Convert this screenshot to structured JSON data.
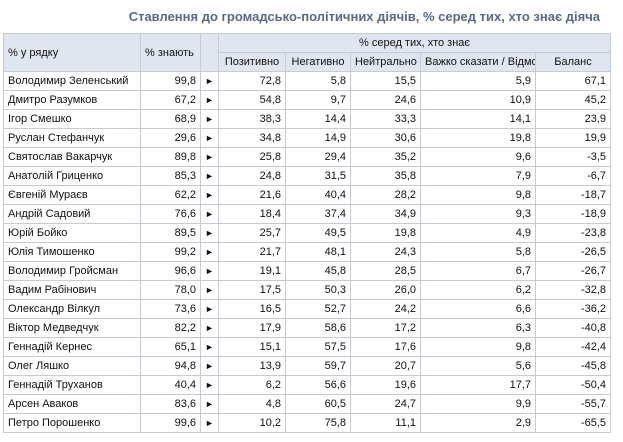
{
  "title": "Ставлення до громадсько-політичних діячів, % серед тих, хто знає діяча",
  "table": {
    "header": {
      "name": "% у рядку",
      "known": "% знають",
      "group": "% серед тих, хто знає",
      "columns": [
        "Позитивно",
        "Негативно",
        "Нейтрально",
        "Важко сказати / Відмова",
        "Баланс"
      ]
    },
    "rows": [
      [
        "Володимир Зеленський",
        "99,8",
        "72,8",
        "5,8",
        "15,5",
        "5,9",
        "67,1"
      ],
      [
        "Дмитро Разумков",
        "67,2",
        "54,8",
        "9,7",
        "24,6",
        "10,9",
        "45,2"
      ],
      [
        "Ігор Смешко",
        "68,9",
        "38,3",
        "14,4",
        "33,3",
        "14,1",
        "23,9"
      ],
      [
        "Руслан Стефанчук",
        "29,6",
        "34,8",
        "14,9",
        "30,6",
        "19,8",
        "19,9"
      ],
      [
        "Святослав Вакарчук",
        "89,8",
        "25,8",
        "29,4",
        "35,2",
        "9,6",
        "-3,5"
      ],
      [
        "Анатолій Гриценко",
        "85,3",
        "24,8",
        "31,5",
        "35,8",
        "7,9",
        "-6,7"
      ],
      [
        "Євгеній Мураєв",
        "62,2",
        "21,6",
        "40,4",
        "28,2",
        "9,8",
        "-18,7"
      ],
      [
        "Андрій Садовий",
        "76,6",
        "18,4",
        "37,4",
        "34,9",
        "9,3",
        "-18,9"
      ],
      [
        "Юрій Бойко",
        "89,5",
        "25,7",
        "49,5",
        "19,8",
        "4,9",
        "-23,8"
      ],
      [
        "Юлія Тимошенко",
        "99,2",
        "21,7",
        "48,1",
        "24,3",
        "5,8",
        "-26,5"
      ],
      [
        "Володимир Гройсман",
        "96,6",
        "19,1",
        "45,8",
        "28,5",
        "6,7",
        "-26,7"
      ],
      [
        "Вадим Рабінович",
        "78,0",
        "17,5",
        "50,3",
        "26,0",
        "6,2",
        "-32,8"
      ],
      [
        "Олександр Вілкул",
        "73,6",
        "16,5",
        "52,7",
        "24,2",
        "6,6",
        "-36,2"
      ],
      [
        "Віктор Медведчук",
        "82,2",
        "17,9",
        "58,6",
        "17,2",
        "6,3",
        "-40,8"
      ],
      [
        "Геннадій Кернес",
        "65,1",
        "15,1",
        "57,5",
        "17,6",
        "9,8",
        "-42,4"
      ],
      [
        "Олег Ляшко",
        "94,8",
        "13,9",
        "59,7",
        "20,7",
        "5,6",
        "-45,8"
      ],
      [
        "Геннадій Труханов",
        "40,4",
        "6,2",
        "56,6",
        "19,6",
        "17,7",
        "-50,4"
      ],
      [
        "Арсен Аваков",
        "83,6",
        "4,8",
        "60,5",
        "24,7",
        "9,9",
        "-55,7"
      ],
      [
        "Петро Порошенко",
        "99,6",
        "10,2",
        "75,8",
        "11,1",
        "2,9",
        "-65,5"
      ]
    ]
  }
}
